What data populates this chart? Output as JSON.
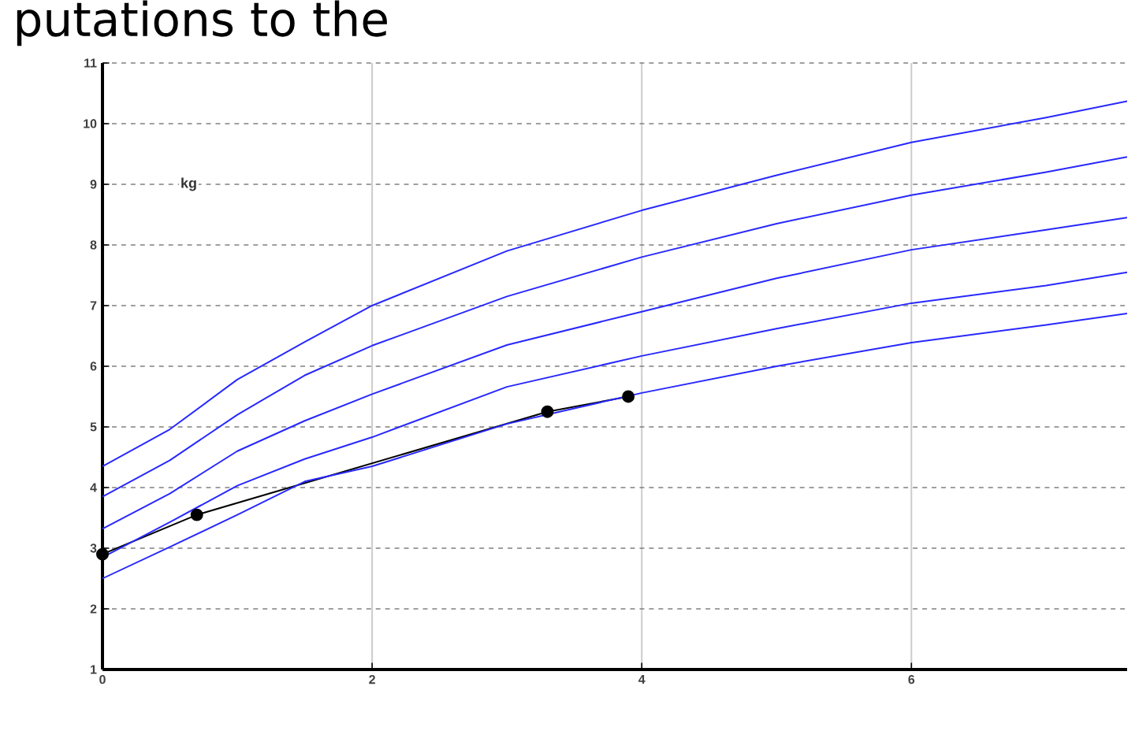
{
  "chart_data": {
    "type": "line",
    "title": "putations to the",
    "ylabel": "kg",
    "x": [
      0,
      0.5,
      1,
      1.5,
      2,
      3,
      4,
      5,
      6,
      7,
      7.6
    ],
    "xlim": [
      0,
      7.6
    ],
    "ylim": [
      1,
      11
    ],
    "xticks": [
      0,
      2,
      4,
      6
    ],
    "yticks": [
      1,
      2,
      3,
      4,
      5,
      6,
      7,
      8,
      9,
      10,
      11
    ],
    "grid": true,
    "series": [
      {
        "color": "#000000",
        "marker": "circle",
        "x": [
          0,
          0.7,
          3.3,
          3.9
        ],
        "values": [
          2.9,
          3.55,
          5.25,
          5.5
        ]
      },
      {
        "color": "#2828ff",
        "values": [
          4.35,
          4.96,
          5.78,
          6.4,
          7.0,
          7.9,
          8.57,
          9.15,
          9.69,
          10.1,
          10.37
        ]
      },
      {
        "color": "#2828ff",
        "values": [
          3.85,
          4.45,
          5.2,
          5.85,
          6.34,
          7.15,
          7.8,
          8.35,
          8.82,
          9.2,
          9.45
        ]
      },
      {
        "color": "#2828ff",
        "values": [
          3.32,
          3.9,
          4.6,
          5.1,
          5.54,
          6.35,
          6.9,
          7.45,
          7.92,
          8.25,
          8.45
        ]
      },
      {
        "color": "#2828ff",
        "values": [
          2.85,
          3.43,
          4.03,
          4.47,
          4.83,
          5.66,
          6.17,
          6.62,
          7.04,
          7.33,
          7.55
        ]
      },
      {
        "color": "#2828ff",
        "values": [
          2.5,
          3.02,
          3.55,
          4.1,
          4.35,
          5.05,
          5.56,
          6.0,
          6.39,
          6.68,
          6.87
        ]
      }
    ]
  }
}
